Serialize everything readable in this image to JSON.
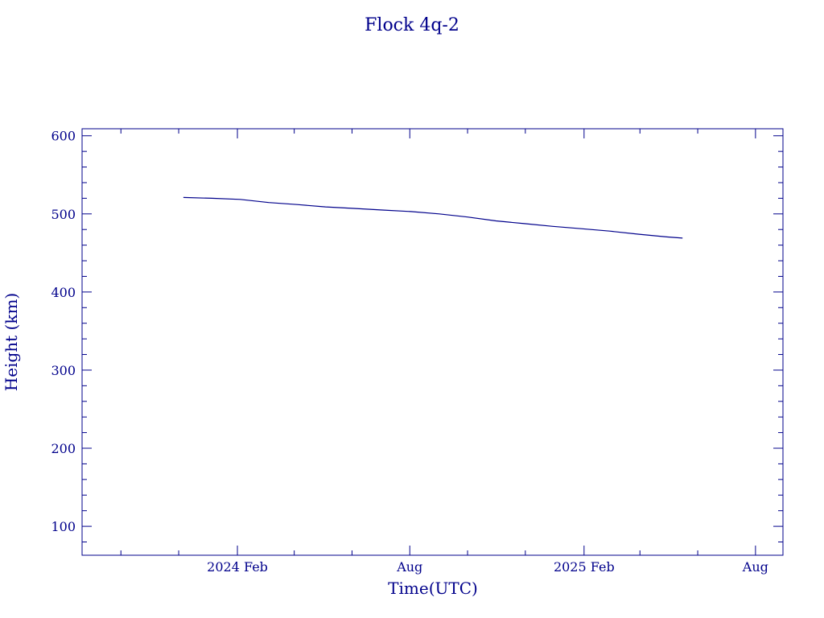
{
  "chart_data": {
    "type": "line",
    "title": "Flock 4q-2",
    "xlabel": "Time(UTC)",
    "ylabel": "Height (km)",
    "color": "#00008b",
    "grid": false,
    "legend": "none",
    "xlim": [
      "2023-08-21",
      "2025-08-30"
    ],
    "ylim": [
      63,
      609
    ],
    "x_ticks": [
      {
        "date": "2024-02-01",
        "label": "2024 Feb"
      },
      {
        "date": "2024-08-01",
        "label": "Aug"
      },
      {
        "date": "2025-02-01",
        "label": "2025 Feb"
      },
      {
        "date": "2025-08-01",
        "label": "Aug"
      }
    ],
    "x_minor_ticks": [
      "2023-10-01",
      "2023-12-01",
      "2024-04-01",
      "2024-06-01",
      "2024-10-01",
      "2024-12-01",
      "2025-04-01",
      "2025-06-01"
    ],
    "y_ticks": [
      100,
      200,
      300,
      400,
      500,
      600
    ],
    "y_minor_step": 20,
    "series": [
      {
        "x": [
          "2023-12-06",
          "2024-01-05",
          "2024-02-04",
          "2024-03-05",
          "2024-04-04",
          "2024-05-04",
          "2024-06-03",
          "2024-07-03",
          "2024-08-02",
          "2024-09-01",
          "2024-10-01",
          "2024-10-31",
          "2024-11-30",
          "2024-12-30",
          "2025-01-29",
          "2025-02-28",
          "2025-03-30",
          "2025-04-29",
          "2025-05-16"
        ],
        "y": [
          521,
          520,
          518.5,
          514.5,
          512,
          509,
          507,
          505,
          503,
          500,
          496,
          491,
          487.5,
          484,
          481,
          478,
          474,
          470.5,
          469
        ]
      }
    ]
  }
}
